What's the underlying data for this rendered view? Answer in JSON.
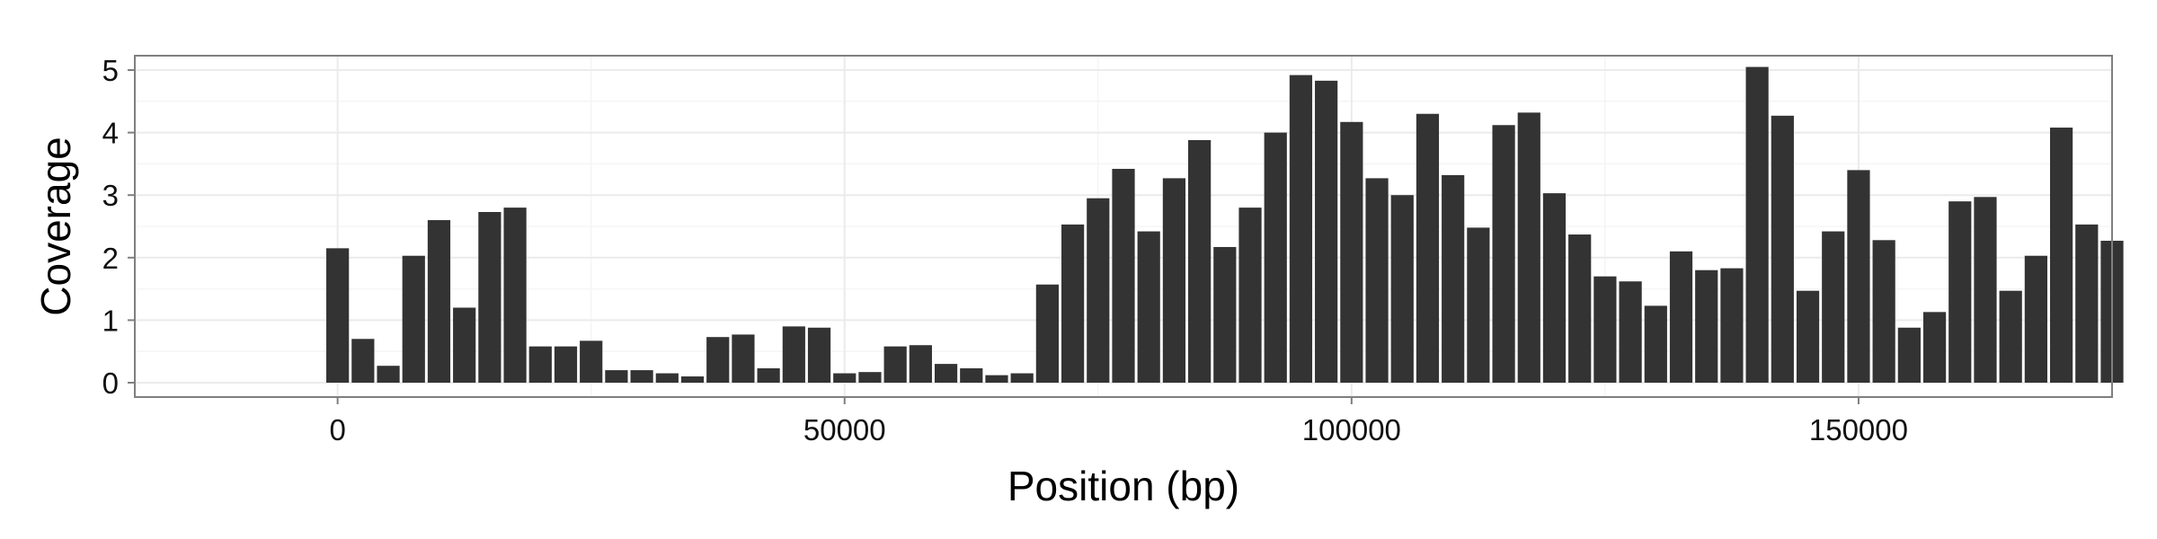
{
  "chart_data": {
    "type": "bar",
    "title": "",
    "xlabel": "Position (bp)",
    "ylabel": "Coverage",
    "xlim": [
      -20000,
      175000
    ],
    "ylim": [
      -0.23,
      5.23
    ],
    "x_ticks": [
      0,
      50000,
      100000,
      150000
    ],
    "x_tick_labels": [
      "0",
      "50000",
      "100000",
      "150000"
    ],
    "y_ticks": [
      0,
      1,
      2,
      3,
      4,
      5
    ],
    "y_tick_labels": [
      "0",
      "1",
      "2",
      "3",
      "4",
      "5"
    ],
    "grid": true,
    "legend": "none",
    "bar_color": "#333333",
    "panel_background": "#ffffff",
    "grid_color": "#ebebeb",
    "bin_width": 2500,
    "x": [
      0,
      2500,
      5000,
      7500,
      10000,
      12500,
      15000,
      17500,
      20000,
      22500,
      25000,
      27500,
      30000,
      32500,
      35000,
      37500,
      40000,
      42500,
      45000,
      47500,
      50000,
      52500,
      55000,
      57500,
      60000,
      62500,
      65000,
      67500,
      70000,
      72500,
      75000,
      77500,
      80000,
      82500,
      85000,
      87500,
      90000,
      92500,
      95000,
      97500,
      100000,
      102500,
      105000,
      107500,
      110000,
      112500,
      115000,
      117500,
      120000,
      122500,
      125000,
      127500,
      130000,
      132500,
      135000,
      137500,
      140000,
      142500,
      145000,
      147500,
      150000,
      152500,
      155000,
      157500,
      160000,
      162500,
      165000,
      167500,
      170000,
      172500,
      175000
    ],
    "values": [
      2.15,
      0.7,
      0.27,
      2.03,
      2.6,
      1.2,
      2.73,
      2.8,
      0.58,
      0.58,
      0.67,
      0.2,
      0.2,
      0.15,
      0.1,
      0.73,
      0.77,
      0.23,
      0.9,
      0.88,
      0.15,
      0.17,
      0.58,
      0.6,
      0.3,
      0.23,
      0.12,
      0.15,
      1.57,
      2.53,
      2.95,
      3.42,
      2.42,
      3.27,
      3.88,
      2.17,
      2.8,
      4.0,
      4.92,
      4.83,
      4.17,
      3.27,
      3.0,
      4.3,
      3.32,
      2.48,
      4.12,
      4.32,
      3.03,
      2.37,
      1.7,
      1.62,
      1.23,
      2.1,
      1.8,
      1.83,
      5.05,
      4.27,
      1.47,
      2.42,
      3.4,
      2.28,
      0.88,
      1.13,
      2.9,
      2.97,
      1.47,
      2.03,
      4.08,
      2.53,
      2.27
    ]
  }
}
